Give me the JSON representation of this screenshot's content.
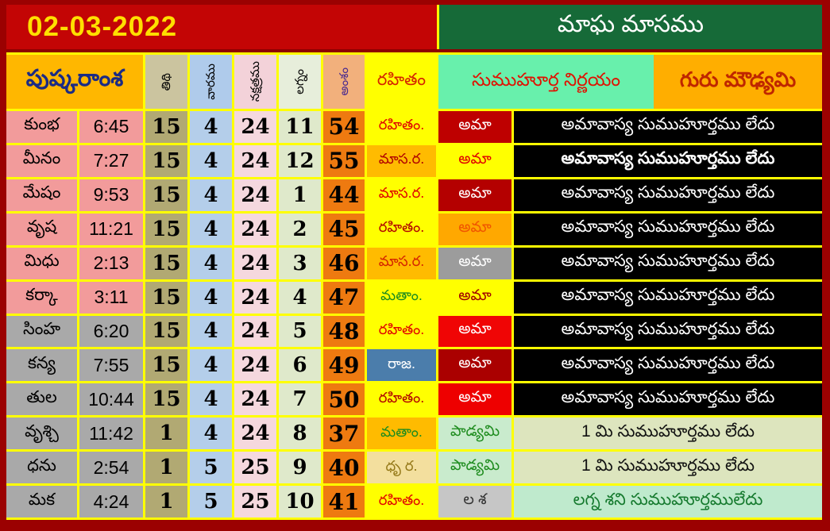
{
  "title_bar": {
    "date": "02-03-2022",
    "month_title": "మాఘ మాసము"
  },
  "table": {
    "left_title": "పుష్కరాంశ",
    "column_headers": [
      "తిథి",
      "వారము",
      "నక్షత్రము",
      "లగ్నం",
      "అంశం"
    ],
    "rahitam_header": "రహితం",
    "sumuhurta_header": "సుముహూర్త నిర్ణయం",
    "guru_header": "గురు మౌఢ్యమి",
    "rows": [
      {
        "sign": "కుంభ",
        "time": "6:45",
        "tithi": "15",
        "vara": "4",
        "nakshatra": "24",
        "lagna": "11",
        "amsa": "54",
        "rahitam": "రహితం.",
        "rahitam_bg": "#ffff00",
        "rahitam_fg": "#e00000",
        "tithi_name": "అమా",
        "tithi_name_bg": "#be0000",
        "tithi_name_fg": "#ffffff",
        "message": "అమావాస్య సుముహూర్తము లేదు",
        "message_bg": "#000000",
        "message_fg": "#ffffff",
        "message_bold": false,
        "sign_bg": "#f29b9b"
      },
      {
        "sign": "మీనం",
        "time": "7:27",
        "tithi": "15",
        "vara": "4",
        "nakshatra": "24",
        "lagna": "12",
        "amsa": "55",
        "rahitam": "మాస.ర.",
        "rahitam_bg": "#ffbb00",
        "rahitam_fg": "#b00000",
        "tithi_name": "అమా",
        "tithi_name_bg": "#ffff00",
        "tithi_name_fg": "#e00000",
        "message": "అమావాస్య సుముహూర్తము లేదు",
        "message_bg": "#000000",
        "message_fg": "#ffffff",
        "message_bold": true,
        "sign_bg": "#f29b9b"
      },
      {
        "sign": "మేషం",
        "time": "9:53",
        "tithi": "15",
        "vara": "4",
        "nakshatra": "24",
        "lagna": "1",
        "amsa": "44",
        "rahitam": "మాస.ర.",
        "rahitam_bg": "#ffff00",
        "rahitam_fg": "#e00000",
        "tithi_name": "అమా",
        "tithi_name_bg": "#b40000",
        "tithi_name_fg": "#ffffff",
        "message": "అమావాస్య సుముహూర్తము లేదు",
        "message_bg": "#000000",
        "message_fg": "#ffffff",
        "message_bold": false,
        "sign_bg": "#f29b9b"
      },
      {
        "sign": "వృష",
        "time": "11:21",
        "tithi": "15",
        "vara": "4",
        "nakshatra": "24",
        "lagna": "2",
        "amsa": "45",
        "rahitam": "రహితం.",
        "rahitam_bg": "#ffff00",
        "rahitam_fg": "#b00000",
        "tithi_name": "అమా",
        "tithi_name_bg": "#ffa800",
        "tithi_name_fg": "#f05500",
        "message": "అమావాస్య సుముహూర్తము లేదు",
        "message_bg": "#000000",
        "message_fg": "#ffffff",
        "message_bold": false,
        "sign_bg": "#f29b9b"
      },
      {
        "sign": "మిధు",
        "time": "2:13",
        "tithi": "15",
        "vara": "4",
        "nakshatra": "24",
        "lagna": "3",
        "amsa": "46",
        "rahitam": "మాస.ర.",
        "rahitam_bg": "#ffbb00",
        "rahitam_fg": "#d42300",
        "tithi_name": "అమా",
        "tithi_name_bg": "#9c9c9c",
        "tithi_name_fg": "#ffffff",
        "message": "అమావాస్య సుముహూర్తము లేదు",
        "message_bg": "#000000",
        "message_fg": "#ffffff",
        "message_bold": false,
        "sign_bg": "#f29b9b"
      },
      {
        "sign": "కర్కా",
        "time": "3:11",
        "tithi": "15",
        "vara": "4",
        "nakshatra": "24",
        "lagna": "4",
        "amsa": "47",
        "rahitam": "మతాం.",
        "rahitam_bg": "#ffff00",
        "rahitam_fg": "#1e8c1e",
        "tithi_name": "అమా",
        "tithi_name_bg": "#ffff00",
        "tithi_name_fg": "#a00000",
        "message": "అమావాస్య సుముహూర్తము లేదు",
        "message_bg": "#000000",
        "message_fg": "#ffffff",
        "message_bold": false,
        "sign_bg": "#f29b9b"
      },
      {
        "sign": "సింహ",
        "time": "6:20",
        "tithi": "15",
        "vara": "4",
        "nakshatra": "24",
        "lagna": "5",
        "amsa": "48",
        "rahitam": "రహితం.",
        "rahitam_bg": "#ffff00",
        "rahitam_fg": "#e00000",
        "tithi_name": "అమా",
        "tithi_name_bg": "#f00505",
        "tithi_name_fg": "#ffffff",
        "message": "అమావాస్య సుముహూర్తము లేదు",
        "message_bg": "#000000",
        "message_fg": "#ffffff",
        "message_bold": false,
        "sign_bg": "#a9a9a9"
      },
      {
        "sign": "కన్య",
        "time": "7:55",
        "tithi": "15",
        "vara": "4",
        "nakshatra": "24",
        "lagna": "6",
        "amsa": "49",
        "rahitam": "రాజ.",
        "rahitam_bg": "#4b7dab",
        "rahitam_fg": "#ffffff",
        "tithi_name": "అమా",
        "tithi_name_bg": "#aa0000",
        "tithi_name_fg": "#ffffff",
        "message": "అమావాస్య సుముహూర్తము లేదు",
        "message_bg": "#000000",
        "message_fg": "#ffffff",
        "message_bold": false,
        "sign_bg": "#a9a9a9"
      },
      {
        "sign": "తుల",
        "time": "10:44",
        "tithi": "15",
        "vara": "4",
        "nakshatra": "24",
        "lagna": "7",
        "amsa": "50",
        "rahitam": "రహితం.",
        "rahitam_bg": "#ffff00",
        "rahitam_fg": "#b00000",
        "tithi_name": "అమా",
        "tithi_name_bg": "#ee0000",
        "tithi_name_fg": "#ffffff",
        "message": "అమావాస్య సుముహూర్తము లేదు",
        "message_bg": "#000000",
        "message_fg": "#ffffff",
        "message_bold": false,
        "sign_bg": "#a9a9a9"
      },
      {
        "sign": "వృశ్చి",
        "time": "11:42",
        "tithi": "1",
        "vara": "4",
        "nakshatra": "24",
        "lagna": "8",
        "amsa": "37",
        "rahitam": "మతాం.",
        "rahitam_bg": "#ffbb00",
        "rahitam_fg": "#1e8c1e",
        "tithi_name": "పాడ్యమి",
        "tithi_name_bg": "#c9ebcd",
        "tithi_name_fg": "#1e8c1e",
        "message": "1 మి  సుముహూర్తము లేదు",
        "message_bg": "#dde5be",
        "message_fg": "#111111",
        "message_bold": false,
        "sign_bg": "#a9a9a9"
      },
      {
        "sign": "ధను",
        "time": "2:54",
        "tithi": "1",
        "vara": "5",
        "nakshatra": "25",
        "lagna": "9",
        "amsa": "40",
        "rahitam": "ధృ ర.",
        "rahitam_bg": "#f3df9e",
        "rahitam_fg": "#937716",
        "tithi_name": "పాడ్యమి",
        "tithi_name_bg": "#c9ebcd",
        "tithi_name_fg": "#1e8c1e",
        "message": "1 మి  సుముహూర్తము లేదు",
        "message_bg": "#dde5be",
        "message_fg": "#111111",
        "message_bold": false,
        "sign_bg": "#a9a9a9"
      },
      {
        "sign": "మక",
        "time": "4:24",
        "tithi": "1",
        "vara": "5",
        "nakshatra": "25",
        "lagna": "10",
        "amsa": "41",
        "rahitam": "రహితం.",
        "rahitam_bg": "#ffff00",
        "rahitam_fg": "#e00000",
        "tithi_name": "ల శ",
        "tithi_name_bg": "#c6c6c6",
        "tithi_name_fg": "#333333",
        "message": "లగ్న శని సుముహూర్తములేదు",
        "message_bg": "#bfeacd",
        "message_fg": "#157a2e",
        "message_bold": false,
        "sign_bg": "#a9a9a9"
      }
    ]
  },
  "colors": {
    "frame": "#9b0101",
    "band_red": "#c30505",
    "date_yellow": "#ffdf00",
    "month_green": "#166a38",
    "grid_lines": "#ffff00",
    "pushkaramsha_bg": "#ffb700",
    "pushkaramsha_fg": "#1b2b85",
    "sumuhurta_bg": "#68f0ac",
    "guru_bg": "#ffae00",
    "amsa_col_bg": "#ee7a10",
    "amsa_col_fg": "#4b2b8f",
    "sign_pink": "#f29b9b",
    "sign_gray": "#a9a9a9"
  }
}
